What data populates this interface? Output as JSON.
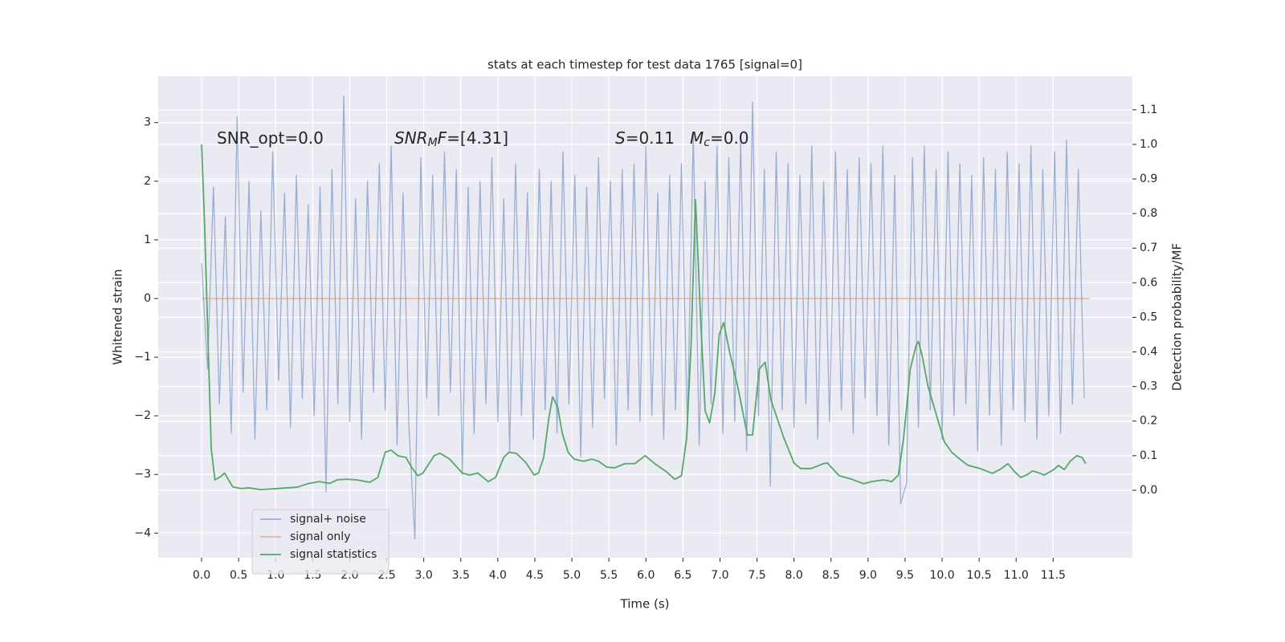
{
  "chart_data": {
    "type": "line",
    "title": "stats at each timestep for test data 1765 [signal=0]",
    "xlabel": "Time (s)",
    "ylabel": "Whitened strain",
    "y2label": "Detection probability/MF",
    "xlim": [
      -0.586,
      12.57
    ],
    "ylim": [
      -4.42,
      3.79
    ],
    "y2lim": [
      -0.195,
      1.197
    ],
    "grid": true,
    "legend": "lower left",
    "xticks": [
      {
        "value": 0,
        "label": "0.0"
      },
      {
        "value": 0.5,
        "label": "0.5"
      },
      {
        "value": 1,
        "label": "1.0"
      },
      {
        "value": 1.5,
        "label": "1.5"
      },
      {
        "value": 2,
        "label": "2.0"
      },
      {
        "value": 2.5,
        "label": "2.5"
      },
      {
        "value": 3,
        "label": "3.0"
      },
      {
        "value": 3.5,
        "label": "3.5"
      },
      {
        "value": 4,
        "label": "4.0"
      },
      {
        "value": 4.5,
        "label": "4.5"
      },
      {
        "value": 5,
        "label": "5.0"
      },
      {
        "value": 5.5,
        "label": "5.5"
      },
      {
        "value": 6,
        "label": "6.0"
      },
      {
        "value": 6.5,
        "label": "6.5"
      },
      {
        "value": 7,
        "label": "7.0"
      },
      {
        "value": 7.5,
        "label": "7.5"
      },
      {
        "value": 8,
        "label": "8.0"
      },
      {
        "value": 8.5,
        "label": "8.5"
      },
      {
        "value": 9,
        "label": "9.0"
      },
      {
        "value": 9.5,
        "label": "9.5"
      },
      {
        "value": 10,
        "label": "10.0"
      },
      {
        "value": 10.5,
        "label": "10.5"
      },
      {
        "value": 11,
        "label": "11.0"
      },
      {
        "value": 11.5,
        "label": "11.5"
      }
    ],
    "yticks": [
      {
        "value": -4,
        "label": "−4"
      },
      {
        "value": -3,
        "label": "−3"
      },
      {
        "value": -2,
        "label": "−2"
      },
      {
        "value": -1,
        "label": "−1"
      },
      0,
      1,
      2,
      3
    ],
    "y2ticks": [
      {
        "value": 0,
        "label": "0.0"
      },
      {
        "value": 0.1,
        "label": "0.1"
      },
      {
        "value": 0.2,
        "label": "0.2"
      },
      {
        "value": 0.3,
        "label": "0.3"
      },
      {
        "value": 0.4,
        "label": "0.4"
      },
      {
        "value": 0.5,
        "label": "0.5"
      },
      {
        "value": 0.6,
        "label": "0.6"
      },
      {
        "value": 0.7,
        "label": "0.7"
      },
      {
        "value": 0.8,
        "label": "0.8"
      },
      {
        "value": 0.9,
        "label": "0.9"
      },
      {
        "value": 1,
        "label": "1.0"
      },
      {
        "value": 1.1,
        "label": "1.1"
      }
    ],
    "annotations": [
      [
        "SNR_opt=0.0"
      ],
      [
        "SNR",
        "M",
        "F",
        "=[4.31]"
      ],
      [
        "S",
        "=0.11"
      ],
      [
        "M",
        "c",
        "=0.0"
      ]
    ],
    "series": [
      {
        "name": "signal+ noise",
        "color": "#4c72b0",
        "opacity": 0.5,
        "x": [
          0,
          0.08,
          0.16,
          0.24,
          0.32,
          0.4,
          0.48,
          0.56,
          0.64,
          0.72,
          0.8,
          0.88,
          0.96,
          1.04,
          1.12,
          1.2,
          1.28,
          1.36,
          1.44,
          1.52,
          1.6,
          1.68,
          1.76,
          1.84,
          1.92,
          2,
          2.08,
          2.16,
          2.24,
          2.32,
          2.4,
          2.48,
          2.56,
          2.64,
          2.72,
          2.8,
          2.88,
          2.96,
          3.04,
          3.12,
          3.2,
          3.28,
          3.36,
          3.44,
          3.52,
          3.6,
          3.68,
          3.76,
          3.84,
          3.92,
          4,
          4.08,
          4.16,
          4.24,
          4.32,
          4.4,
          4.48,
          4.56,
          4.64,
          4.72,
          4.8,
          4.88,
          4.96,
          5.04,
          5.12,
          5.2,
          5.28,
          5.36,
          5.44,
          5.52,
          5.6,
          5.68,
          5.76,
          5.84,
          5.92,
          6,
          6.08,
          6.16,
          6.24,
          6.32,
          6.4,
          6.48,
          6.56,
          6.64,
          6.72,
          6.8,
          6.88,
          6.96,
          7.04,
          7.12,
          7.2,
          7.28,
          7.36,
          7.44,
          7.52,
          7.6,
          7.68,
          7.76,
          7.84,
          7.92,
          8,
          8.08,
          8.16,
          8.24,
          8.32,
          8.4,
          8.48,
          8.56,
          8.64,
          8.72,
          8.8,
          8.88,
          8.96,
          9.04,
          9.12,
          9.2,
          9.28,
          9.36,
          9.44,
          9.52,
          9.6,
          9.68,
          9.76,
          9.84,
          9.92,
          10,
          10.08,
          10.16,
          10.24,
          10.32,
          10.4,
          10.48,
          10.56,
          10.64,
          10.72,
          10.8,
          10.88,
          10.96,
          11.04,
          11.12,
          11.2,
          11.28,
          11.36,
          11.44,
          11.52,
          11.6,
          11.68,
          11.76,
          11.84,
          11.92
        ],
        "values": [
          0.6,
          -1.2,
          1.9,
          -1.8,
          1.4,
          -2.3,
          3.1,
          -1.6,
          2.0,
          -2.4,
          1.5,
          -1.9,
          2.5,
          -1.4,
          1.8,
          -2.2,
          2.1,
          -1.7,
          1.6,
          -2.0,
          1.9,
          -3.3,
          2.2,
          -1.8,
          3.45,
          -2.1,
          1.7,
          -2.4,
          2.0,
          -1.6,
          2.3,
          -1.9,
          2.6,
          -2.5,
          1.8,
          -2.2,
          -4.1,
          2.4,
          -1.7,
          2.1,
          -2.0,
          2.5,
          -1.6,
          2.2,
          -3.0,
          1.9,
          -2.3,
          2.0,
          -1.8,
          2.4,
          -2.1,
          1.7,
          -2.6,
          2.3,
          -2.0,
          1.8,
          -2.4,
          2.2,
          -1.9,
          2.0,
          -2.3,
          2.5,
          -1.8,
          2.1,
          -2.7,
          1.9,
          -2.2,
          2.4,
          -1.7,
          2.0,
          -2.5,
          2.2,
          -1.9,
          2.3,
          -2.1,
          2.6,
          -2.0,
          1.8,
          -2.4,
          2.1,
          -1.9,
          2.3,
          -2.2,
          2.8,
          -2.5,
          2.0,
          -1.8,
          2.6,
          -2.3,
          2.4,
          -2.1,
          2.7,
          -2.6,
          3.35,
          -2.0,
          2.2,
          -3.2,
          2.5,
          -1.9,
          2.3,
          -2.2,
          2.1,
          -1.8,
          2.6,
          -2.4,
          2.0,
          -2.1,
          2.5,
          -1.9,
          2.2,
          -2.3,
          2.4,
          -1.7,
          2.3,
          -2.0,
          2.6,
          -2.5,
          2.1,
          -3.5,
          -3.15,
          2.4,
          -2.2,
          2.6,
          -1.9,
          2.2,
          -2.4,
          2.5,
          -2.0,
          2.3,
          -1.8,
          2.1,
          -2.6,
          2.4,
          -2.0,
          2.2,
          -2.5,
          2.5,
          -1.9,
          2.3,
          -2.1,
          2.6,
          -2.4,
          2.2,
          -2.0,
          2.5,
          -2.3,
          2.7,
          -1.8,
          2.2,
          -1.7
        ]
      },
      {
        "name": "signal only",
        "color": "#dd8452",
        "opacity": 0.5,
        "x": [
          0,
          11.99
        ],
        "values": [
          0,
          0
        ]
      },
      {
        "name": "signal statistics",
        "color": "#55a868",
        "opacity": 1,
        "axis": "y2",
        "x": [
          0,
          0.04,
          0.13,
          0.18,
          0.26,
          0.31,
          0.42,
          0.53,
          0.64,
          0.8,
          1.02,
          1.29,
          1.45,
          1.59,
          1.73,
          1.83,
          1.94,
          2.1,
          2.27,
          2.38,
          2.48,
          2.56,
          2.65,
          2.76,
          2.84,
          2.92,
          2.99,
          3.14,
          3.22,
          3.35,
          3.52,
          3.62,
          3.73,
          3.87,
          3.97,
          4.08,
          4.15,
          4.25,
          4.38,
          4.49,
          4.55,
          4.62,
          4.69,
          4.74,
          4.81,
          4.87,
          4.95,
          5.03,
          5.16,
          5.27,
          5.36,
          5.47,
          5.58,
          5.72,
          5.85,
          5.99,
          6.12,
          6.28,
          6.39,
          6.48,
          6.55,
          6.61,
          6.67,
          6.74,
          6.8,
          6.86,
          6.93,
          6.99,
          7.05,
          7.13,
          7.24,
          7.37,
          7.44,
          7.53,
          7.61,
          7.69,
          7.86,
          8.0,
          8.09,
          8.23,
          8.4,
          8.45,
          8.61,
          8.78,
          8.94,
          9.05,
          9.21,
          9.32,
          9.41,
          9.48,
          9.57,
          9.65,
          9.68,
          9.73,
          9.81,
          9.92,
          10.03,
          10.13,
          10.24,
          10.35,
          10.51,
          10.68,
          10.78,
          10.89,
          10.97,
          11.06,
          11.14,
          11.22,
          11.3,
          11.38,
          11.51,
          11.57,
          11.65,
          11.73,
          11.82,
          11.89,
          11.94
        ],
        "values": [
          1.0,
          0.77,
          0.12,
          0.03,
          0.04,
          0.05,
          0.01,
          0.005,
          0.007,
          0.002,
          0.005,
          0.009,
          0.02,
          0.025,
          0.02,
          0.03,
          0.032,
          0.03,
          0.023,
          0.037,
          0.11,
          0.116,
          0.1,
          0.095,
          0.065,
          0.042,
          0.05,
          0.1,
          0.107,
          0.09,
          0.05,
          0.044,
          0.05,
          0.025,
          0.037,
          0.095,
          0.11,
          0.107,
          0.08,
          0.044,
          0.05,
          0.095,
          0.21,
          0.27,
          0.24,
          0.165,
          0.11,
          0.09,
          0.084,
          0.09,
          0.084,
          0.067,
          0.065,
          0.077,
          0.077,
          0.1,
          0.077,
          0.053,
          0.032,
          0.042,
          0.15,
          0.42,
          0.84,
          0.49,
          0.23,
          0.195,
          0.28,
          0.45,
          0.485,
          0.4,
          0.3,
          0.16,
          0.16,
          0.35,
          0.37,
          0.26,
          0.153,
          0.079,
          0.063,
          0.063,
          0.077,
          0.079,
          0.042,
          0.032,
          0.019,
          0.025,
          0.03,
          0.025,
          0.044,
          0.15,
          0.35,
          0.42,
          0.43,
          0.39,
          0.3,
          0.22,
          0.14,
          0.11,
          0.09,
          0.072,
          0.063,
          0.049,
          0.06,
          0.077,
          0.056,
          0.037,
          0.044,
          0.056,
          0.051,
          0.044,
          0.06,
          0.072,
          0.06,
          0.084,
          0.1,
          0.095,
          0.077
        ]
      }
    ]
  }
}
